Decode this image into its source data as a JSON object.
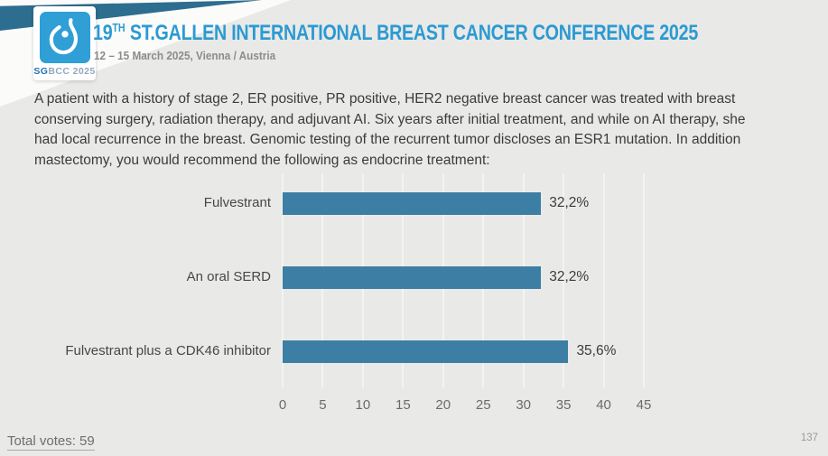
{
  "header": {
    "logo": {
      "sg": "SG",
      "bcc": "BCC",
      "year": " 2025",
      "icon": "sgbcc-breast-drop-icon",
      "square_color": "#2f9fd6"
    },
    "title": {
      "number": "19",
      "ordinal": "TH",
      "rest": " ST.GALLEN INTERNATIONAL BREAST CANCER CONFERENCE 2025"
    },
    "subtitle": "12 – 15 March 2025, Vienna / Austria"
  },
  "question": "A patient with a history of stage 2, ER positive, PR positive, HER2 negative breast cancer was treated with breast conserving surgery, radiation therapy, and adjuvant AI.  Six years after initial treatment, and while on AI therapy, she had local recurrence in the breast.  Genomic testing of the recurrent tumor discloses an ESR1 mutation.  In addition mastectomy, you would recommend the following as endocrine treatment:",
  "chart_data": {
    "type": "bar",
    "orientation": "horizontal",
    "title": "",
    "xlabel": "",
    "ylabel": "",
    "categories": [
      "Fulvestrant",
      "An oral SERD",
      "Fulvestrant plus a CDK46 inhibitor"
    ],
    "values": [
      32.2,
      32.2,
      35.6
    ],
    "value_labels": [
      "32,2%",
      "32,2%",
      "35,6%"
    ],
    "xlim": [
      0,
      45
    ],
    "x_ticks": [
      0,
      5,
      10,
      15,
      20,
      25,
      30,
      35,
      40,
      45
    ],
    "grid": true,
    "legend": false,
    "bar_color": "#3d7ea4"
  },
  "footer": {
    "total_votes_label": "Total votes: 59",
    "page_number": "137"
  },
  "colors": {
    "background": "#e9e9e7",
    "accent_blue": "#2b9ad3",
    "wedge_blue": "#2d6d90",
    "bar_blue": "#3d7ea4"
  }
}
